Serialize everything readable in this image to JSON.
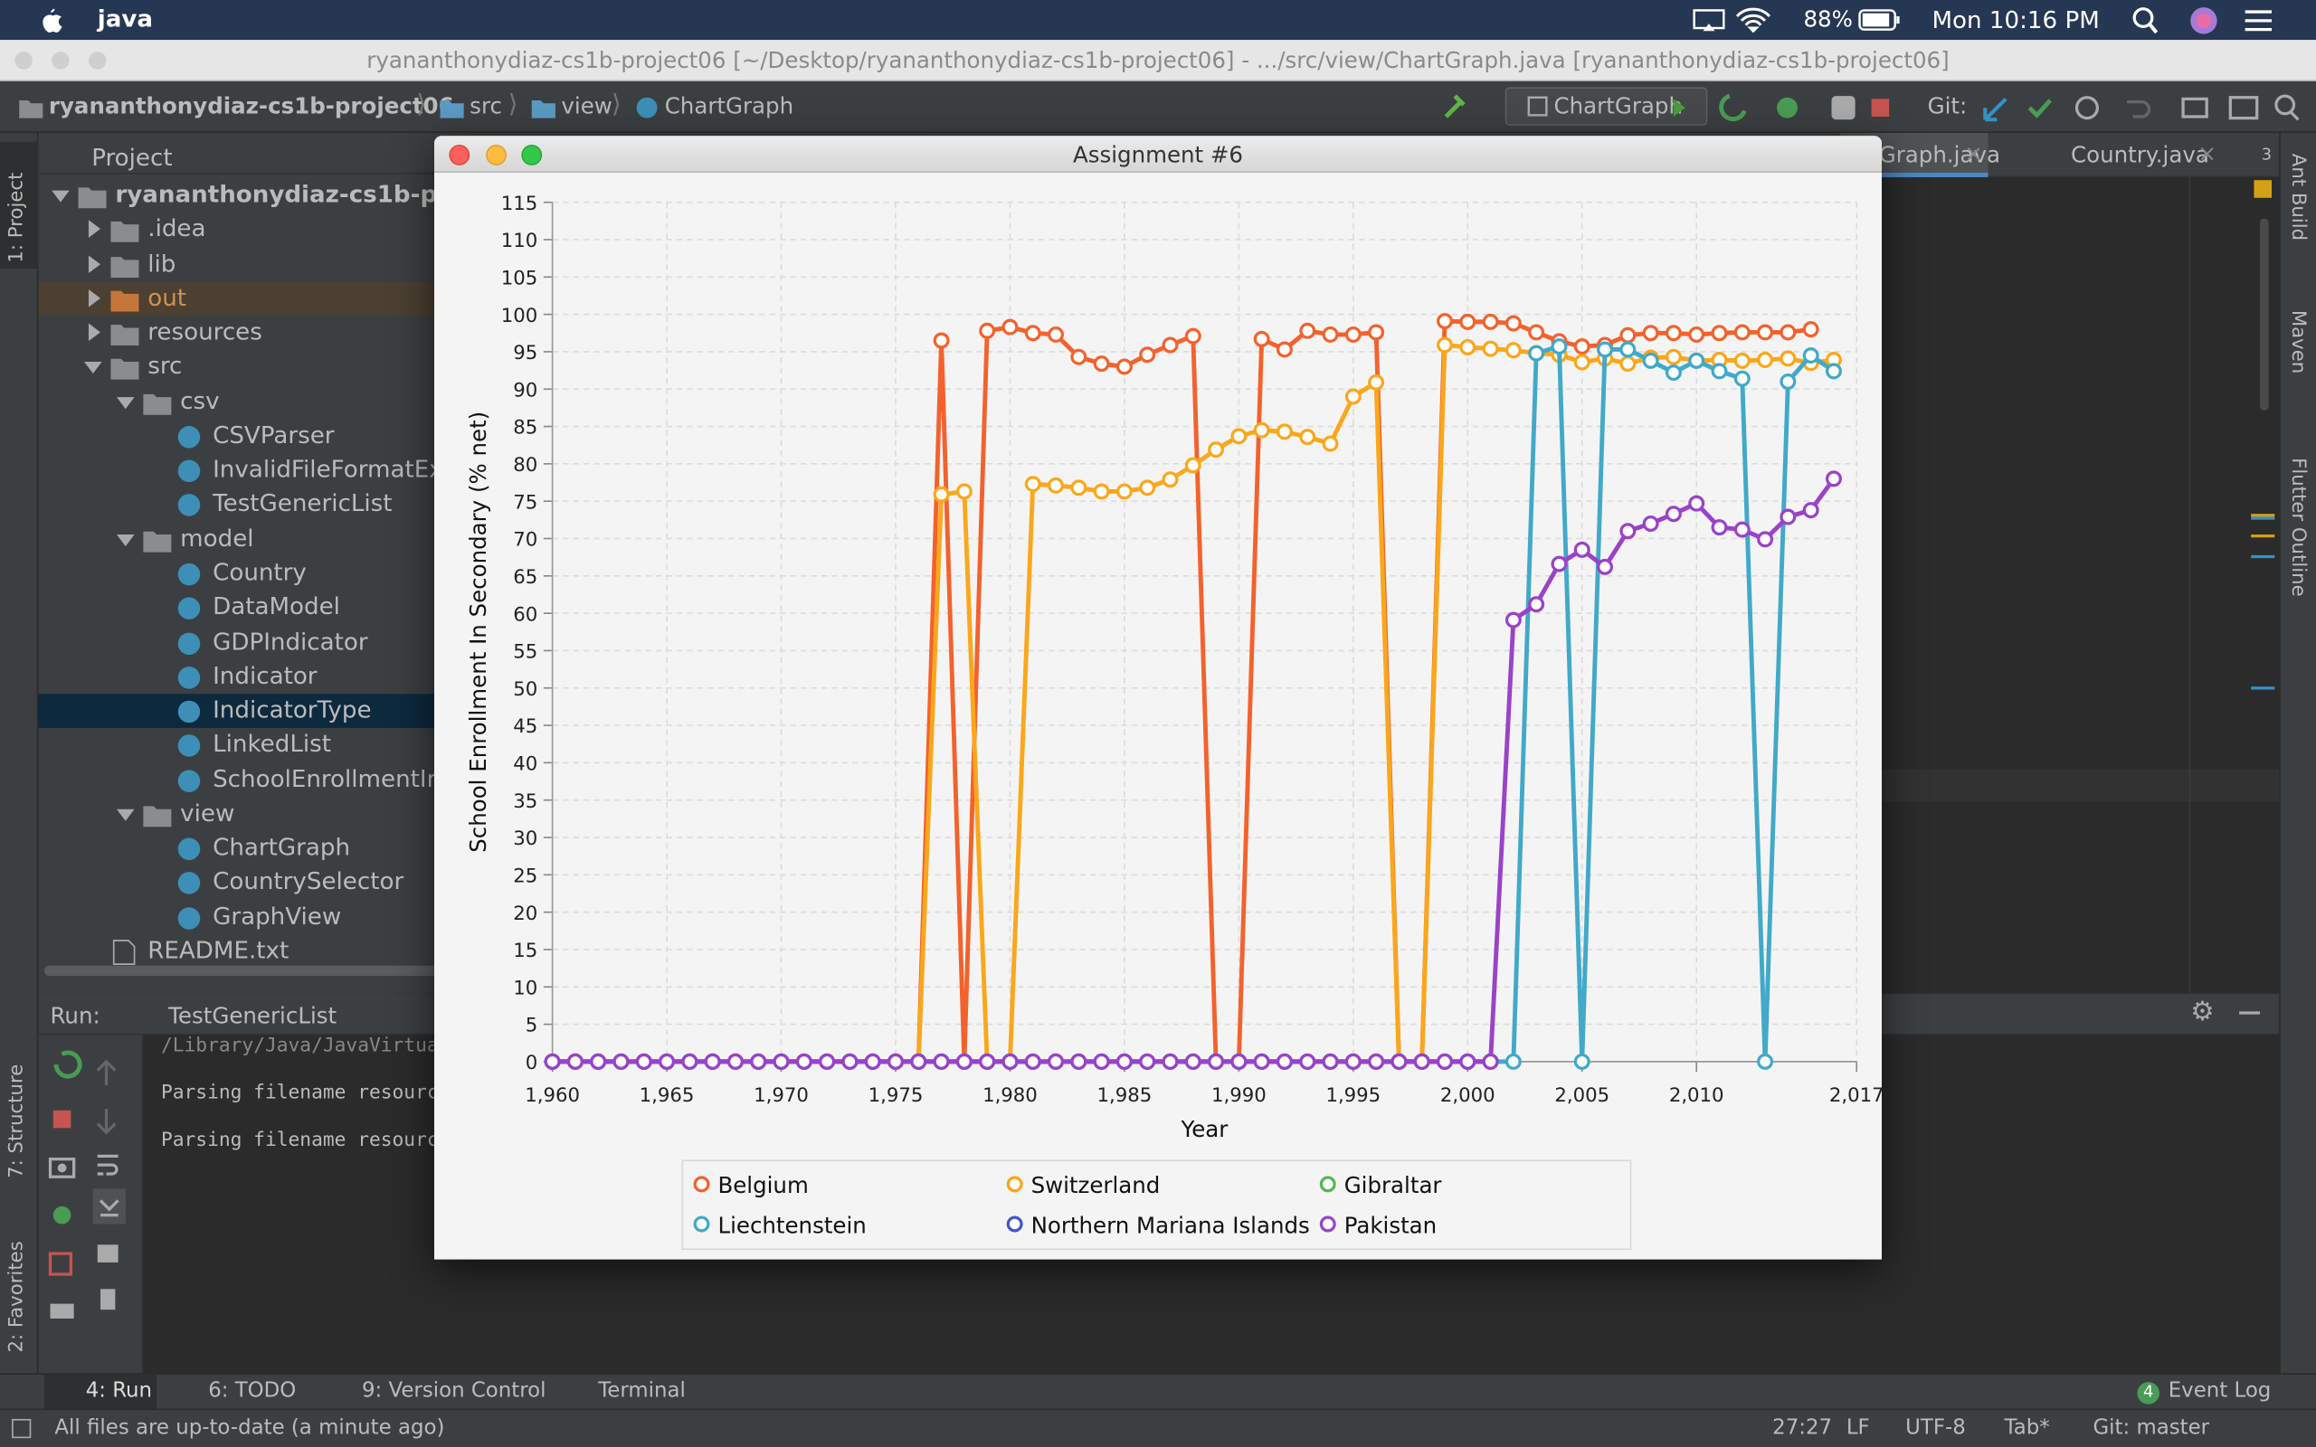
{
  "menubar": {
    "app": "java",
    "battery": "88%",
    "clock": "Mon 10:16 PM"
  },
  "ide": {
    "title": "ryananthonydiaz-cs1b-project06 [~/Desktop/ryananthonydiaz-cs1b-project06] - .../src/view/ChartGraph.java [ryananthonydiaz-cs1b-project06]",
    "breadcrumbs": [
      "ryananthonydiaz-cs1b-project06",
      "src",
      "view",
      "ChartGraph"
    ],
    "run_config": "ChartGraph",
    "git_label": "Git:",
    "left_tabs": [
      "1: Project",
      "7: Structure",
      "2: Favorites"
    ],
    "right_tabs": [
      "Ant Build",
      "Maven",
      "Flutter Outline"
    ],
    "project_header": "Project",
    "tree": [
      "ryananthonydiaz-cs1b-proje",
      ".idea",
      "lib",
      "out",
      "resources",
      "src",
      "csv",
      "CSVParser",
      "InvalidFileFormatExc",
      "TestGenericList",
      "model",
      "Country",
      "DataModel",
      "GDPIndicator",
      "Indicator",
      "IndicatorType",
      "LinkedList",
      "SchoolEnrollmentInd",
      "view",
      "ChartGraph",
      "CountrySelector",
      "GraphView",
      "README.txt"
    ],
    "editor_tabs": [
      "Graph.java",
      "Country.java"
    ],
    "tab_count": "3",
    "run": {
      "label": "Run:",
      "tab": "TestGenericList",
      "lines": [
        "/Library/Java/JavaVirtual",
        "Parsing filename resource",
        "Parsing filename resource"
      ]
    },
    "tool_tabs": [
      "4: Run",
      "6: TODO",
      "9: Version Control",
      "Terminal"
    ],
    "event_count": "4",
    "event_log": "Event Log",
    "status": {
      "message": "All files are up-to-date (a minute ago)",
      "items": [
        "27:27",
        "LF",
        "UTF-8",
        "Tab*",
        "Git: master"
      ]
    }
  },
  "window": {
    "title": "Assignment #6"
  },
  "chart_data": {
    "type": "line",
    "x_label": "Year",
    "y_label": "School Enrollment In Secondary (% net)",
    "x": [
      1960,
      1961,
      1962,
      1963,
      1964,
      1965,
      1966,
      1967,
      1968,
      1969,
      1970,
      1971,
      1972,
      1973,
      1974,
      1975,
      1976,
      1977,
      1978,
      1979,
      1980,
      1981,
      1982,
      1983,
      1984,
      1985,
      1986,
      1987,
      1988,
      1989,
      1990,
      1991,
      1992,
      1993,
      1994,
      1995,
      1996,
      1997,
      1998,
      1999,
      2000,
      2001,
      2002,
      2003,
      2004,
      2005,
      2006,
      2007,
      2008,
      2009,
      2010,
      2011,
      2012,
      2013,
      2014,
      2015,
      2016
    ],
    "xlim": [
      1960,
      2017
    ],
    "xticks": [
      {
        "value": 1960,
        "label": "1,960"
      },
      {
        "value": 1965,
        "label": "1,965"
      },
      {
        "value": 1970,
        "label": "1,970"
      },
      {
        "value": 1975,
        "label": "1,975"
      },
      {
        "value": 1980,
        "label": "1,980"
      },
      {
        "value": 1985,
        "label": "1,985"
      },
      {
        "value": 1990,
        "label": "1,990"
      },
      {
        "value": 1995,
        "label": "1,995"
      },
      {
        "value": 2000,
        "label": "2,000"
      },
      {
        "value": 2005,
        "label": "2,005"
      },
      {
        "value": 2010,
        "label": "2,010"
      },
      {
        "value": 2017,
        "label": "2,017"
      }
    ],
    "ylim": [
      0,
      115
    ],
    "yticks": [
      0,
      5,
      10,
      15,
      20,
      25,
      30,
      35,
      40,
      45,
      50,
      55,
      60,
      65,
      70,
      75,
      80,
      85,
      90,
      95,
      100,
      105,
      110,
      115
    ],
    "grid": true,
    "legend": "bottom",
    "series": [
      {
        "name": "Belgium",
        "color": "#f3622d",
        "values": [
          0,
          0,
          0,
          0,
          0,
          0,
          0,
          0,
          0,
          0,
          0,
          0,
          0,
          0,
          0,
          0,
          0,
          96.5,
          0,
          97.8,
          98.3,
          97.5,
          97.3,
          94.3,
          93.4,
          93,
          94.6,
          95.9,
          97.1,
          0,
          0,
          96.7,
          95.3,
          97.8,
          97.3,
          97.3,
          97.6,
          0,
          0,
          99.1,
          99,
          99,
          98.8,
          97.6,
          96.4,
          95.7,
          95.9,
          97.2,
          97.5,
          97.5,
          97.3,
          97.5,
          97.6,
          97.6,
          97.6,
          98,
          null
        ]
      },
      {
        "name": "Switzerland",
        "color": "#fba71b",
        "values": [
          0,
          0,
          0,
          0,
          0,
          0,
          0,
          0,
          0,
          0,
          0,
          0,
          0,
          0,
          0,
          0,
          0,
          75.9,
          76.3,
          0,
          0,
          77.3,
          77.1,
          76.8,
          76.3,
          76.3,
          76.8,
          77.9,
          79.8,
          81.9,
          83.7,
          84.5,
          84.3,
          83.6,
          82.7,
          89,
          90.9,
          0,
          0,
          95.9,
          95.6,
          95.4,
          95.2,
          94.8,
          94.6,
          93.6,
          94.1,
          93.4,
          94.2,
          94.3,
          93.8,
          93.9,
          93.8,
          93.9,
          94.1,
          93.5,
          93.9
        ]
      },
      {
        "name": "Gibraltar",
        "color": "#57b757",
        "values": [
          0,
          0,
          0,
          0,
          0,
          0,
          0,
          0,
          0,
          0,
          0,
          0,
          0,
          0,
          0,
          0,
          0,
          0,
          0,
          0,
          0,
          0,
          0,
          0,
          0,
          0,
          0,
          0,
          0,
          0,
          0,
          0,
          0,
          0,
          0,
          0,
          0,
          0,
          0,
          0,
          0,
          0,
          null,
          null,
          null,
          null,
          null,
          null,
          null,
          null,
          null,
          null,
          null,
          null,
          null,
          null,
          null
        ]
      },
      {
        "name": "Liechtenstein",
        "color": "#41a9c9",
        "values": [
          0,
          0,
          0,
          0,
          0,
          0,
          0,
          0,
          0,
          0,
          0,
          0,
          0,
          0,
          0,
          0,
          0,
          0,
          0,
          0,
          0,
          0,
          0,
          0,
          0,
          0,
          0,
          0,
          0,
          0,
          0,
          0,
          0,
          0,
          0,
          0,
          0,
          0,
          0,
          0,
          0,
          0,
          0,
          94.8,
          95.7,
          0,
          95.3,
          95.3,
          93.8,
          92.2,
          93.8,
          92.4,
          91.4,
          0,
          91,
          94.5,
          92.4
        ]
      },
      {
        "name": "Northern Mariana Islands",
        "color": "#4258c9",
        "values": [
          0,
          0,
          0,
          0,
          0,
          0,
          0,
          0,
          0,
          0,
          0,
          0,
          0,
          0,
          0,
          0,
          0,
          0,
          0,
          0,
          0,
          0,
          0,
          0,
          0,
          0,
          0,
          0,
          0,
          0,
          0,
          0,
          0,
          0,
          0,
          0,
          0,
          0,
          0,
          0,
          0,
          0,
          null,
          null,
          null,
          null,
          null,
          null,
          null,
          null,
          null,
          null,
          null,
          null,
          null,
          null,
          null
        ]
      },
      {
        "name": "Pakistan",
        "color": "#9a42c8",
        "values": [
          0,
          0,
          0,
          0,
          0,
          0,
          0,
          0,
          0,
          0,
          0,
          0,
          0,
          0,
          0,
          0,
          0,
          0,
          0,
          0,
          0,
          0,
          0,
          0,
          0,
          0,
          0,
          0,
          0,
          0,
          0,
          0,
          0,
          0,
          0,
          0,
          0,
          0,
          0,
          0,
          0,
          0,
          59.1,
          61.2,
          66.6,
          68.5,
          66.2,
          71,
          72,
          73.3,
          74.7,
          71.5,
          71.2,
          69.9,
          72.9,
          73.8,
          78
        ]
      }
    ]
  }
}
